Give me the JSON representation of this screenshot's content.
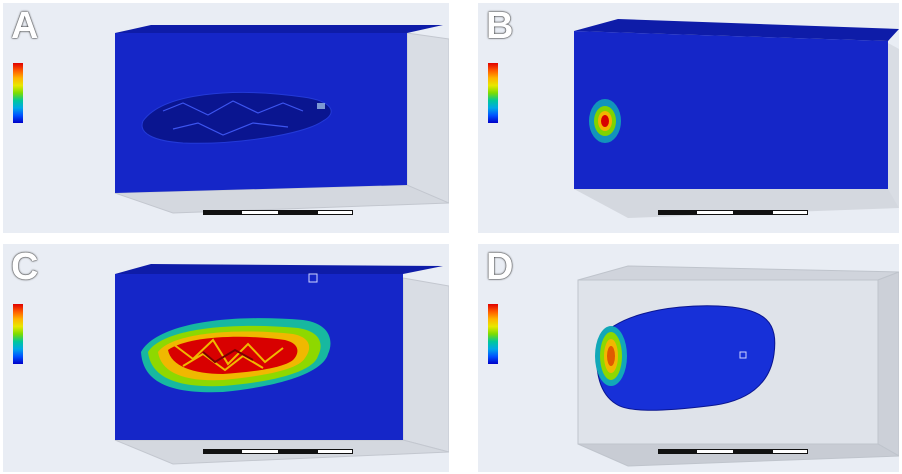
{
  "panels": [
    {
      "label": "A"
    },
    {
      "label": "B"
    },
    {
      "label": "C"
    },
    {
      "label": "D"
    }
  ],
  "colors": {
    "body_blue": "#1526c8",
    "panel_bg": "#e9edf4",
    "hot_red": "#d80000",
    "letter": "#ffffff"
  }
}
